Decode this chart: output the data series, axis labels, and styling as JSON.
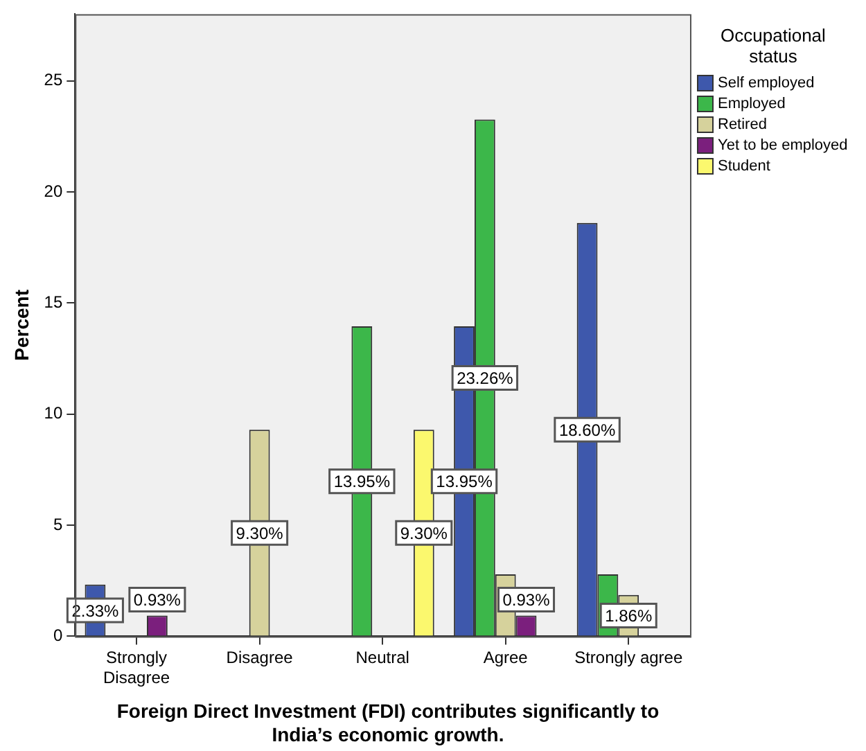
{
  "chart_data": {
    "type": "bar",
    "xlabel": "Foreign Direct Investment (FDI) contributes significantly to India’s economic growth.",
    "ylabel": "Percent",
    "legend_title": "Occupational status",
    "legend": "right",
    "grid": false,
    "categories": [
      "Strongly Disagree",
      "Disagree",
      "Neutral",
      "Agree",
      "Strongly agree"
    ],
    "ylim": [
      0,
      28
    ],
    "yticks": [
      0,
      5,
      10,
      15,
      20,
      25
    ],
    "series": [
      {
        "name": "Self employed",
        "color": "#3e58ac",
        "values": [
          2.33,
          null,
          null,
          13.95,
          18.6
        ],
        "value_labels": [
          "2.33%",
          null,
          null,
          "13.95%",
          "18.60%"
        ]
      },
      {
        "name": "Employed",
        "color": "#3cb74a",
        "values": [
          null,
          null,
          13.95,
          23.26,
          2.79
        ],
        "value_labels": [
          null,
          null,
          "13.95%",
          "23.26%",
          null
        ]
      },
      {
        "name": "Retired",
        "color": "#d6d29c",
        "values": [
          null,
          9.3,
          null,
          2.79,
          1.86
        ],
        "value_labels": [
          null,
          "9.30%",
          null,
          null,
          "1.86%"
        ]
      },
      {
        "name": "Yet to be employed",
        "color": "#7b1f7d",
        "values": [
          0.93,
          null,
          null,
          0.93,
          null
        ],
        "value_labels": [
          "0.93%",
          null,
          null,
          "0.93%",
          null
        ]
      },
      {
        "name": "Student",
        "color": "#fbf86e",
        "values": [
          null,
          null,
          9.3,
          null,
          null
        ],
        "value_labels": [
          null,
          null,
          "9.30%",
          null,
          null
        ]
      }
    ]
  }
}
